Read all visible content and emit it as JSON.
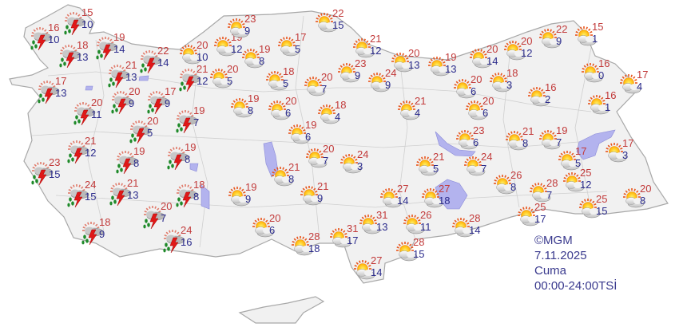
{
  "info": {
    "copyright": "©MGM",
    "date": "7.11.2025",
    "day": "Cuma",
    "period": "00:00-24:00TSİ"
  },
  "colors": {
    "max_temp": "#c23a3a",
    "min_temp": "#2b2b8c",
    "land": "#f1f1f1",
    "border": "#b5b5b5",
    "lake": "#b3b3ee"
  },
  "icon_types": {
    "storm": "thunderstorm-rain-icon",
    "partly": "partly-cloudy-icon"
  },
  "cities": [
    {
      "icon": "storm",
      "max": "15",
      "min": "10"
    },
    {
      "icon": "storm",
      "max": "16",
      "min": "10"
    },
    {
      "icon": "storm",
      "max": "18",
      "min": "13"
    },
    {
      "icon": "storm",
      "max": "19",
      "min": "14"
    },
    {
      "icon": "storm",
      "max": "22",
      "min": "14"
    },
    {
      "icon": "storm",
      "max": "21",
      "min": "13"
    },
    {
      "icon": "storm",
      "max": "21",
      "min": "12"
    },
    {
      "icon": "storm",
      "max": "17",
      "min": "13"
    },
    {
      "icon": "storm",
      "max": "20",
      "min": "9"
    },
    {
      "icon": "storm",
      "max": "17",
      "min": "9"
    },
    {
      "icon": "storm",
      "max": "20",
      "min": "11"
    },
    {
      "icon": "storm",
      "max": "20",
      "min": "5"
    },
    {
      "icon": "storm",
      "max": "19",
      "min": "7"
    },
    {
      "icon": "storm",
      "max": "21",
      "min": "12"
    },
    {
      "icon": "storm",
      "max": "19",
      "min": "8"
    },
    {
      "icon": "storm",
      "max": "19",
      "min": "8"
    },
    {
      "icon": "storm",
      "max": "23",
      "min": "15"
    },
    {
      "icon": "storm",
      "max": "24",
      "min": "15"
    },
    {
      "icon": "storm",
      "max": "21",
      "min": "13"
    },
    {
      "icon": "storm",
      "max": "18",
      "min": "8"
    },
    {
      "icon": "storm",
      "max": "20",
      "min": "7"
    },
    {
      "icon": "storm",
      "max": "18",
      "min": "9"
    },
    {
      "icon": "storm",
      "max": "24",
      "min": "16"
    },
    {
      "icon": "partly",
      "max": "20",
      "min": "10"
    },
    {
      "icon": "partly",
      "max": "19",
      "min": "12"
    },
    {
      "icon": "partly",
      "max": "23",
      "min": "9"
    },
    {
      "icon": "partly",
      "max": "19",
      "min": "8"
    },
    {
      "icon": "partly",
      "max": "17",
      "min": "5"
    },
    {
      "icon": "partly",
      "max": "22",
      "min": "15"
    },
    {
      "icon": "partly",
      "max": "20",
      "min": "5"
    },
    {
      "icon": "partly",
      "max": "18",
      "min": "5"
    },
    {
      "icon": "partly",
      "max": "20",
      "min": "7"
    },
    {
      "icon": "partly",
      "max": "23",
      "min": "9"
    },
    {
      "icon": "partly",
      "max": "24",
      "min": "9"
    },
    {
      "icon": "partly",
      "max": "21",
      "min": "12"
    },
    {
      "icon": "partly",
      "max": "20",
      "min": "13"
    },
    {
      "icon": "partly",
      "max": "19",
      "min": "13"
    },
    {
      "icon": "partly",
      "max": "20",
      "min": "14"
    },
    {
      "icon": "partly",
      "max": "20",
      "min": "12"
    },
    {
      "icon": "partly",
      "max": "22",
      "min": "9"
    },
    {
      "icon": "partly",
      "max": "15",
      "min": "1"
    },
    {
      "icon": "partly",
      "max": "16",
      "min": "0"
    },
    {
      "icon": "partly",
      "max": "17",
      "min": "4"
    },
    {
      "icon": "partly",
      "max": "16",
      "min": "1"
    },
    {
      "icon": "partly",
      "max": "16",
      "min": "2"
    },
    {
      "icon": "partly",
      "max": "18",
      "min": "3"
    },
    {
      "icon": "partly",
      "max": "20",
      "min": "6"
    },
    {
      "icon": "partly",
      "max": "20",
      "min": "6"
    },
    {
      "icon": "partly",
      "max": "21",
      "min": "4"
    },
    {
      "icon": "partly",
      "max": "18",
      "min": "4"
    },
    {
      "icon": "partly",
      "max": "20",
      "min": "6"
    },
    {
      "icon": "partly",
      "max": "19",
      "min": "8"
    },
    {
      "icon": "partly",
      "max": "19",
      "min": "6"
    },
    {
      "icon": "partly",
      "max": "20",
      "min": "7"
    },
    {
      "icon": "partly",
      "max": "24",
      "min": "3"
    },
    {
      "icon": "partly",
      "max": "21",
      "min": "8"
    },
    {
      "icon": "partly",
      "max": "21",
      "min": "9"
    },
    {
      "icon": "partly",
      "max": "19",
      "min": "9"
    },
    {
      "icon": "partly",
      "max": "20",
      "min": "6"
    },
    {
      "icon": "partly",
      "max": "28",
      "min": "18"
    },
    {
      "icon": "partly",
      "max": "31",
      "min": "17"
    },
    {
      "icon": "partly",
      "max": "31",
      "min": "13"
    },
    {
      "icon": "partly",
      "max": "27",
      "min": "14"
    },
    {
      "icon": "partly",
      "max": "26",
      "min": "11"
    },
    {
      "icon": "partly",
      "max": "28",
      "min": "15"
    },
    {
      "icon": "partly",
      "max": "27",
      "min": "14"
    },
    {
      "icon": "partly",
      "max": "21",
      "min": "5"
    },
    {
      "icon": "partly",
      "max": "27",
      "min": "18"
    },
    {
      "icon": "partly",
      "max": "23",
      "min": "6"
    },
    {
      "icon": "partly",
      "max": "24",
      "min": "7"
    },
    {
      "icon": "partly",
      "max": "28",
      "min": "14"
    },
    {
      "icon": "partly",
      "max": "26",
      "min": "8"
    },
    {
      "icon": "partly",
      "max": "21",
      "min": "8"
    },
    {
      "icon": "partly",
      "max": "19",
      "min": "7"
    },
    {
      "icon": "partly",
      "max": "28",
      "min": "7"
    },
    {
      "icon": "partly",
      "max": "25",
      "min": "12"
    },
    {
      "icon": "partly",
      "max": "17",
      "min": "5"
    },
    {
      "icon": "partly",
      "max": "17",
      "min": "3"
    },
    {
      "icon": "partly",
      "max": "25",
      "min": "17"
    },
    {
      "icon": "partly",
      "max": "25",
      "min": "15"
    },
    {
      "icon": "partly",
      "max": "20",
      "min": "8"
    }
  ]
}
